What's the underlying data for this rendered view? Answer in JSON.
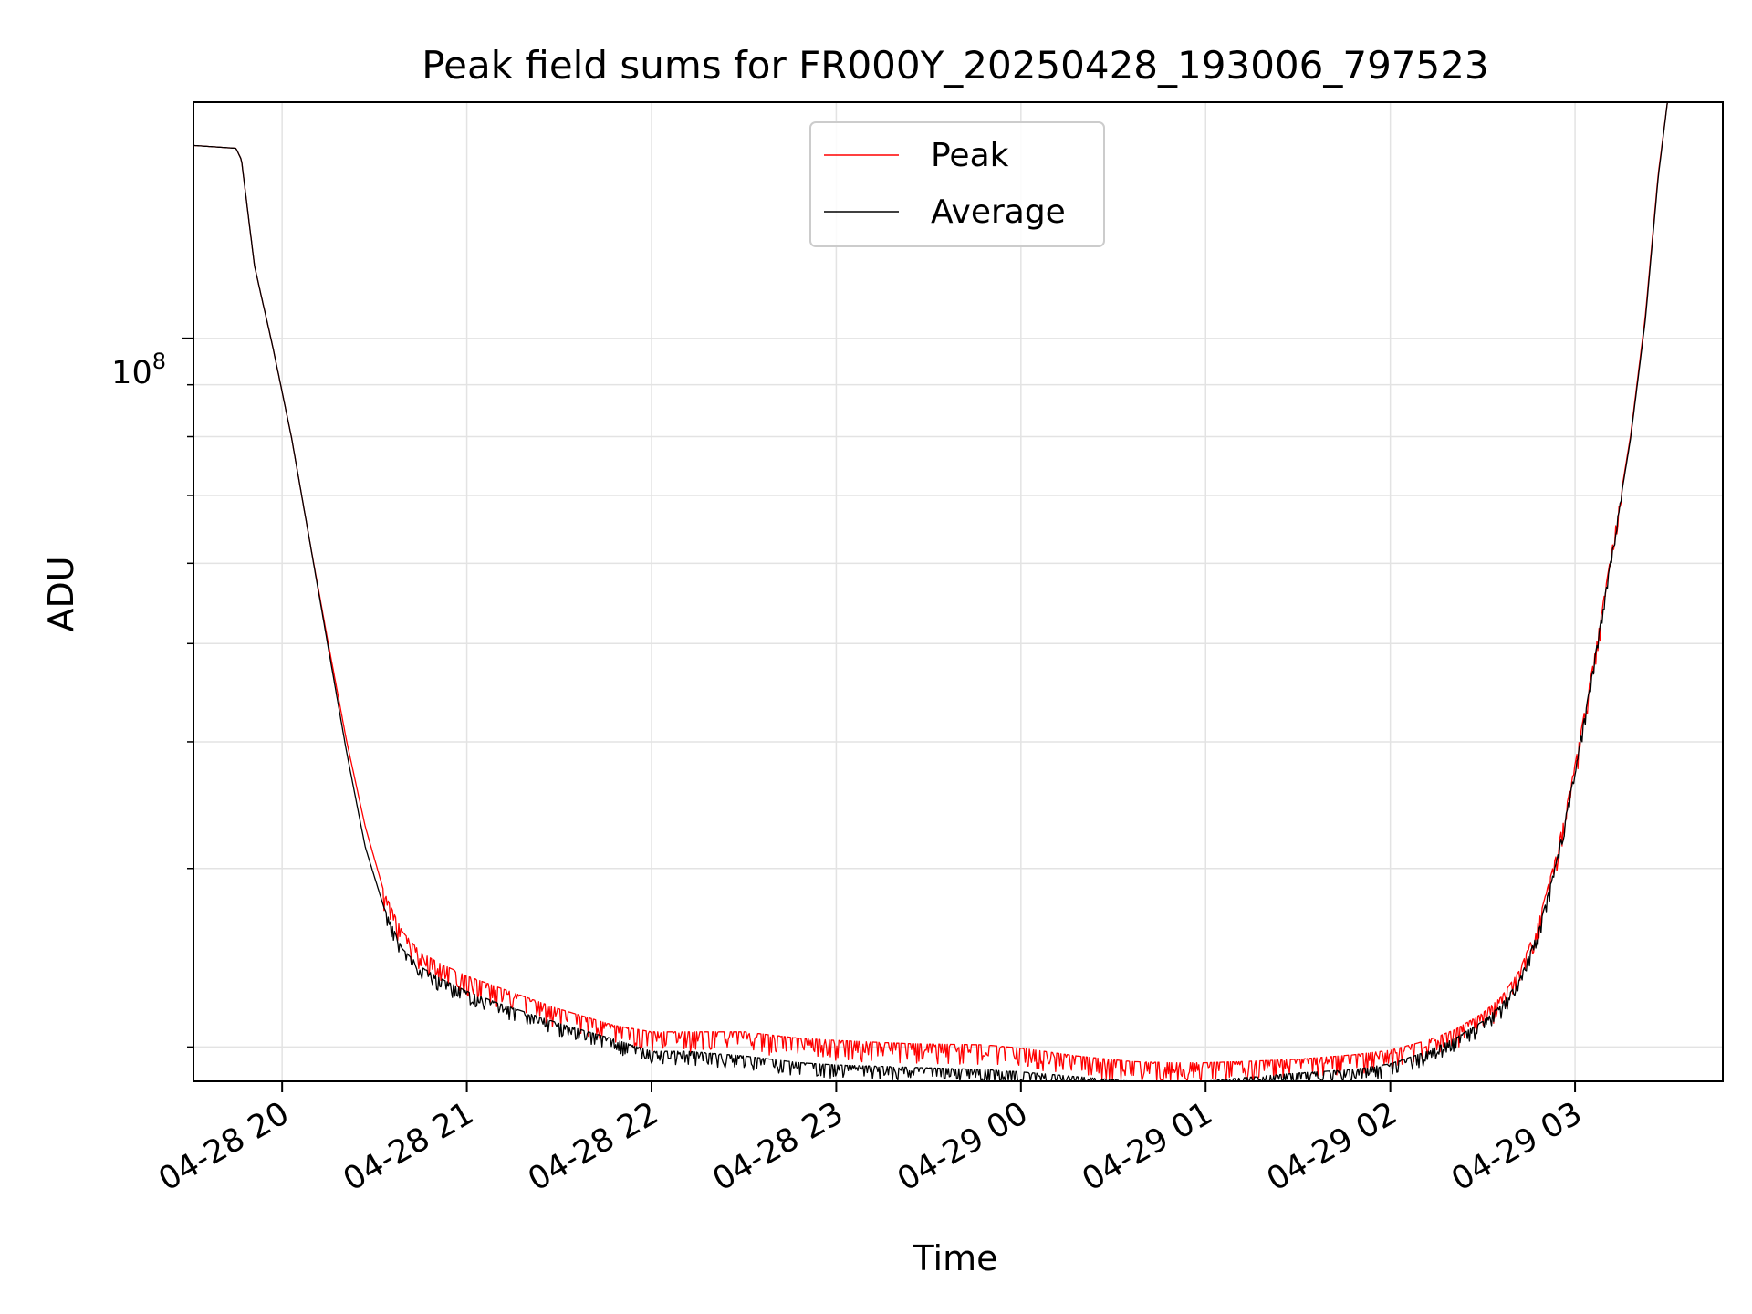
{
  "chart_data": {
    "type": "line",
    "title": "Peak field sums for FR000Y_20250428_193006_797523",
    "xlabel": "Time",
    "ylabel": "ADU",
    "yscale": "log",
    "xlim_hours": [
      -0.48,
      7.8
    ],
    "ylim": [
      18500000,
      171000000
    ],
    "grid": true,
    "legend_position": "top-center",
    "x_tick_labels": [
      {
        "label": "04-28 20",
        "hour": 0
      },
      {
        "label": "04-28 21",
        "hour": 1
      },
      {
        "label": "04-28 22",
        "hour": 2
      },
      {
        "label": "04-28 23",
        "hour": 3
      },
      {
        "label": "04-29 00",
        "hour": 4
      },
      {
        "label": "04-29 01",
        "hour": 5
      },
      {
        "label": "04-29 02",
        "hour": 6
      },
      {
        "label": "04-29 03",
        "hour": 7
      }
    ],
    "y_tick_major": {
      "exponent": "8",
      "base": "10",
      "value": 100000000
    },
    "y_minor_ticks": [
      20000000,
      30000000,
      40000000,
      50000000,
      60000000,
      70000000,
      80000000,
      90000000
    ],
    "series": [
      {
        "name": "Peak",
        "color": "#ff0000",
        "noise_amplitude_rel": 0.045,
        "hours": [
          -0.48,
          -0.25,
          -0.22,
          -0.15,
          -0.05,
          0.05,
          0.15,
          0.25,
          0.35,
          0.45,
          0.55,
          0.65,
          0.75,
          0.85,
          1.0,
          1.2,
          1.5,
          1.8,
          2.0,
          2.2,
          2.5,
          2.8,
          3.0,
          3.4,
          3.8,
          4.0,
          4.3,
          4.6,
          4.8,
          5.0,
          5.2,
          5.5,
          5.8,
          6.0,
          6.2,
          6.35,
          6.5,
          6.6,
          6.7,
          6.8,
          6.9,
          7.0,
          7.1,
          7.2,
          7.3,
          7.38,
          7.45,
          7.5
        ],
        "values": [
          155000000,
          154000000,
          150000000,
          118000000,
          98000000,
          80000000,
          63000000,
          50000000,
          40000000,
          33000000,
          28500000,
          26000000,
          24800000,
          24200000,
          23500000,
          22800000,
          21800000,
          21000000,
          20700000,
          20700000,
          20700000,
          20400000,
          20300000,
          20150000,
          20100000,
          19950000,
          19600000,
          19350000,
          19300000,
          19300000,
          19350000,
          19450000,
          19650000,
          19850000,
          20300000,
          20800000,
          21600000,
          22400000,
          23800000,
          26500000,
          31000000,
          38000000,
          48000000,
          62000000,
          80000000,
          105000000,
          145000000,
          171000000
        ]
      },
      {
        "name": "Average",
        "color": "#000000",
        "noise_amplitude_rel": 0.03,
        "hours": [
          -0.48,
          -0.25,
          -0.22,
          -0.15,
          -0.05,
          0.05,
          0.15,
          0.25,
          0.35,
          0.45,
          0.55,
          0.65,
          0.75,
          0.85,
          1.0,
          1.2,
          1.5,
          1.8,
          2.0,
          2.2,
          2.5,
          2.8,
          3.0,
          3.4,
          3.8,
          4.0,
          4.3,
          4.6,
          4.8,
          5.0,
          5.2,
          5.5,
          5.8,
          6.0,
          6.2,
          6.35,
          6.5,
          6.6,
          6.7,
          6.8,
          6.9,
          7.0,
          7.1,
          7.2,
          7.3,
          7.38,
          7.45,
          7.5
        ],
        "values": [
          155000000,
          154000000,
          150000000,
          118000000,
          98000000,
          80000000,
          63000000,
          49500000,
          39000000,
          31500000,
          27500000,
          25000000,
          24000000,
          23400000,
          22700000,
          22000000,
          21100000,
          20350000,
          19800000,
          19800000,
          19600000,
          19300000,
          19200000,
          19100000,
          19000000,
          18900000,
          18700000,
          18500000,
          18500000,
          18500000,
          18650000,
          18850000,
          19000000,
          19250000,
          19800000,
          20400000,
          21200000,
          22000000,
          23300000,
          26000000,
          30500000,
          37500000,
          47500000,
          61500000,
          79500000,
          104000000,
          144000000,
          171000000
        ]
      }
    ]
  }
}
